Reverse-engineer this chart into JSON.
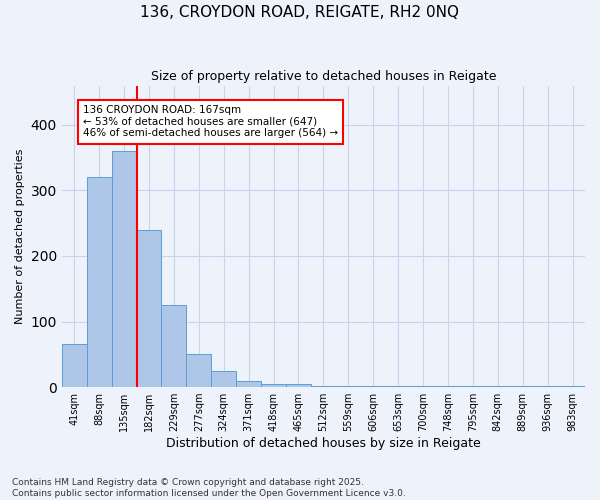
{
  "title": "136, CROYDON ROAD, REIGATE, RH2 0NQ",
  "subtitle": "Size of property relative to detached houses in Reigate",
  "xlabel": "Distribution of detached houses by size in Reigate",
  "ylabel": "Number of detached properties",
  "categories": [
    "41sqm",
    "88sqm",
    "135sqm",
    "182sqm",
    "229sqm",
    "277sqm",
    "324sqm",
    "371sqm",
    "418sqm",
    "465sqm",
    "512sqm",
    "559sqm",
    "606sqm",
    "653sqm",
    "700sqm",
    "748sqm",
    "795sqm",
    "842sqm",
    "889sqm",
    "936sqm",
    "983sqm"
  ],
  "bar_heights": [
    65,
    320,
    360,
    240,
    125,
    50,
    25,
    10,
    5,
    5,
    2,
    2,
    1,
    1,
    1,
    1,
    1,
    1,
    1,
    1,
    1
  ],
  "bar_color": "#aec6e8",
  "bar_edge_color": "#5a9fd4",
  "red_line_x": 2.5,
  "annotation_line1": "136 CROYDON ROAD: 167sqm",
  "annotation_line2": "← 53% of detached houses are smaller (647)",
  "annotation_line3": "46% of semi-detached houses are larger (564) →",
  "ylim": [
    0,
    460
  ],
  "footer1": "Contains HM Land Registry data © Crown copyright and database right 2025.",
  "footer2": "Contains public sector information licensed under the Open Government Licence v3.0.",
  "bg_color": "#eef2fb",
  "grid_color": "#c8d4ee"
}
